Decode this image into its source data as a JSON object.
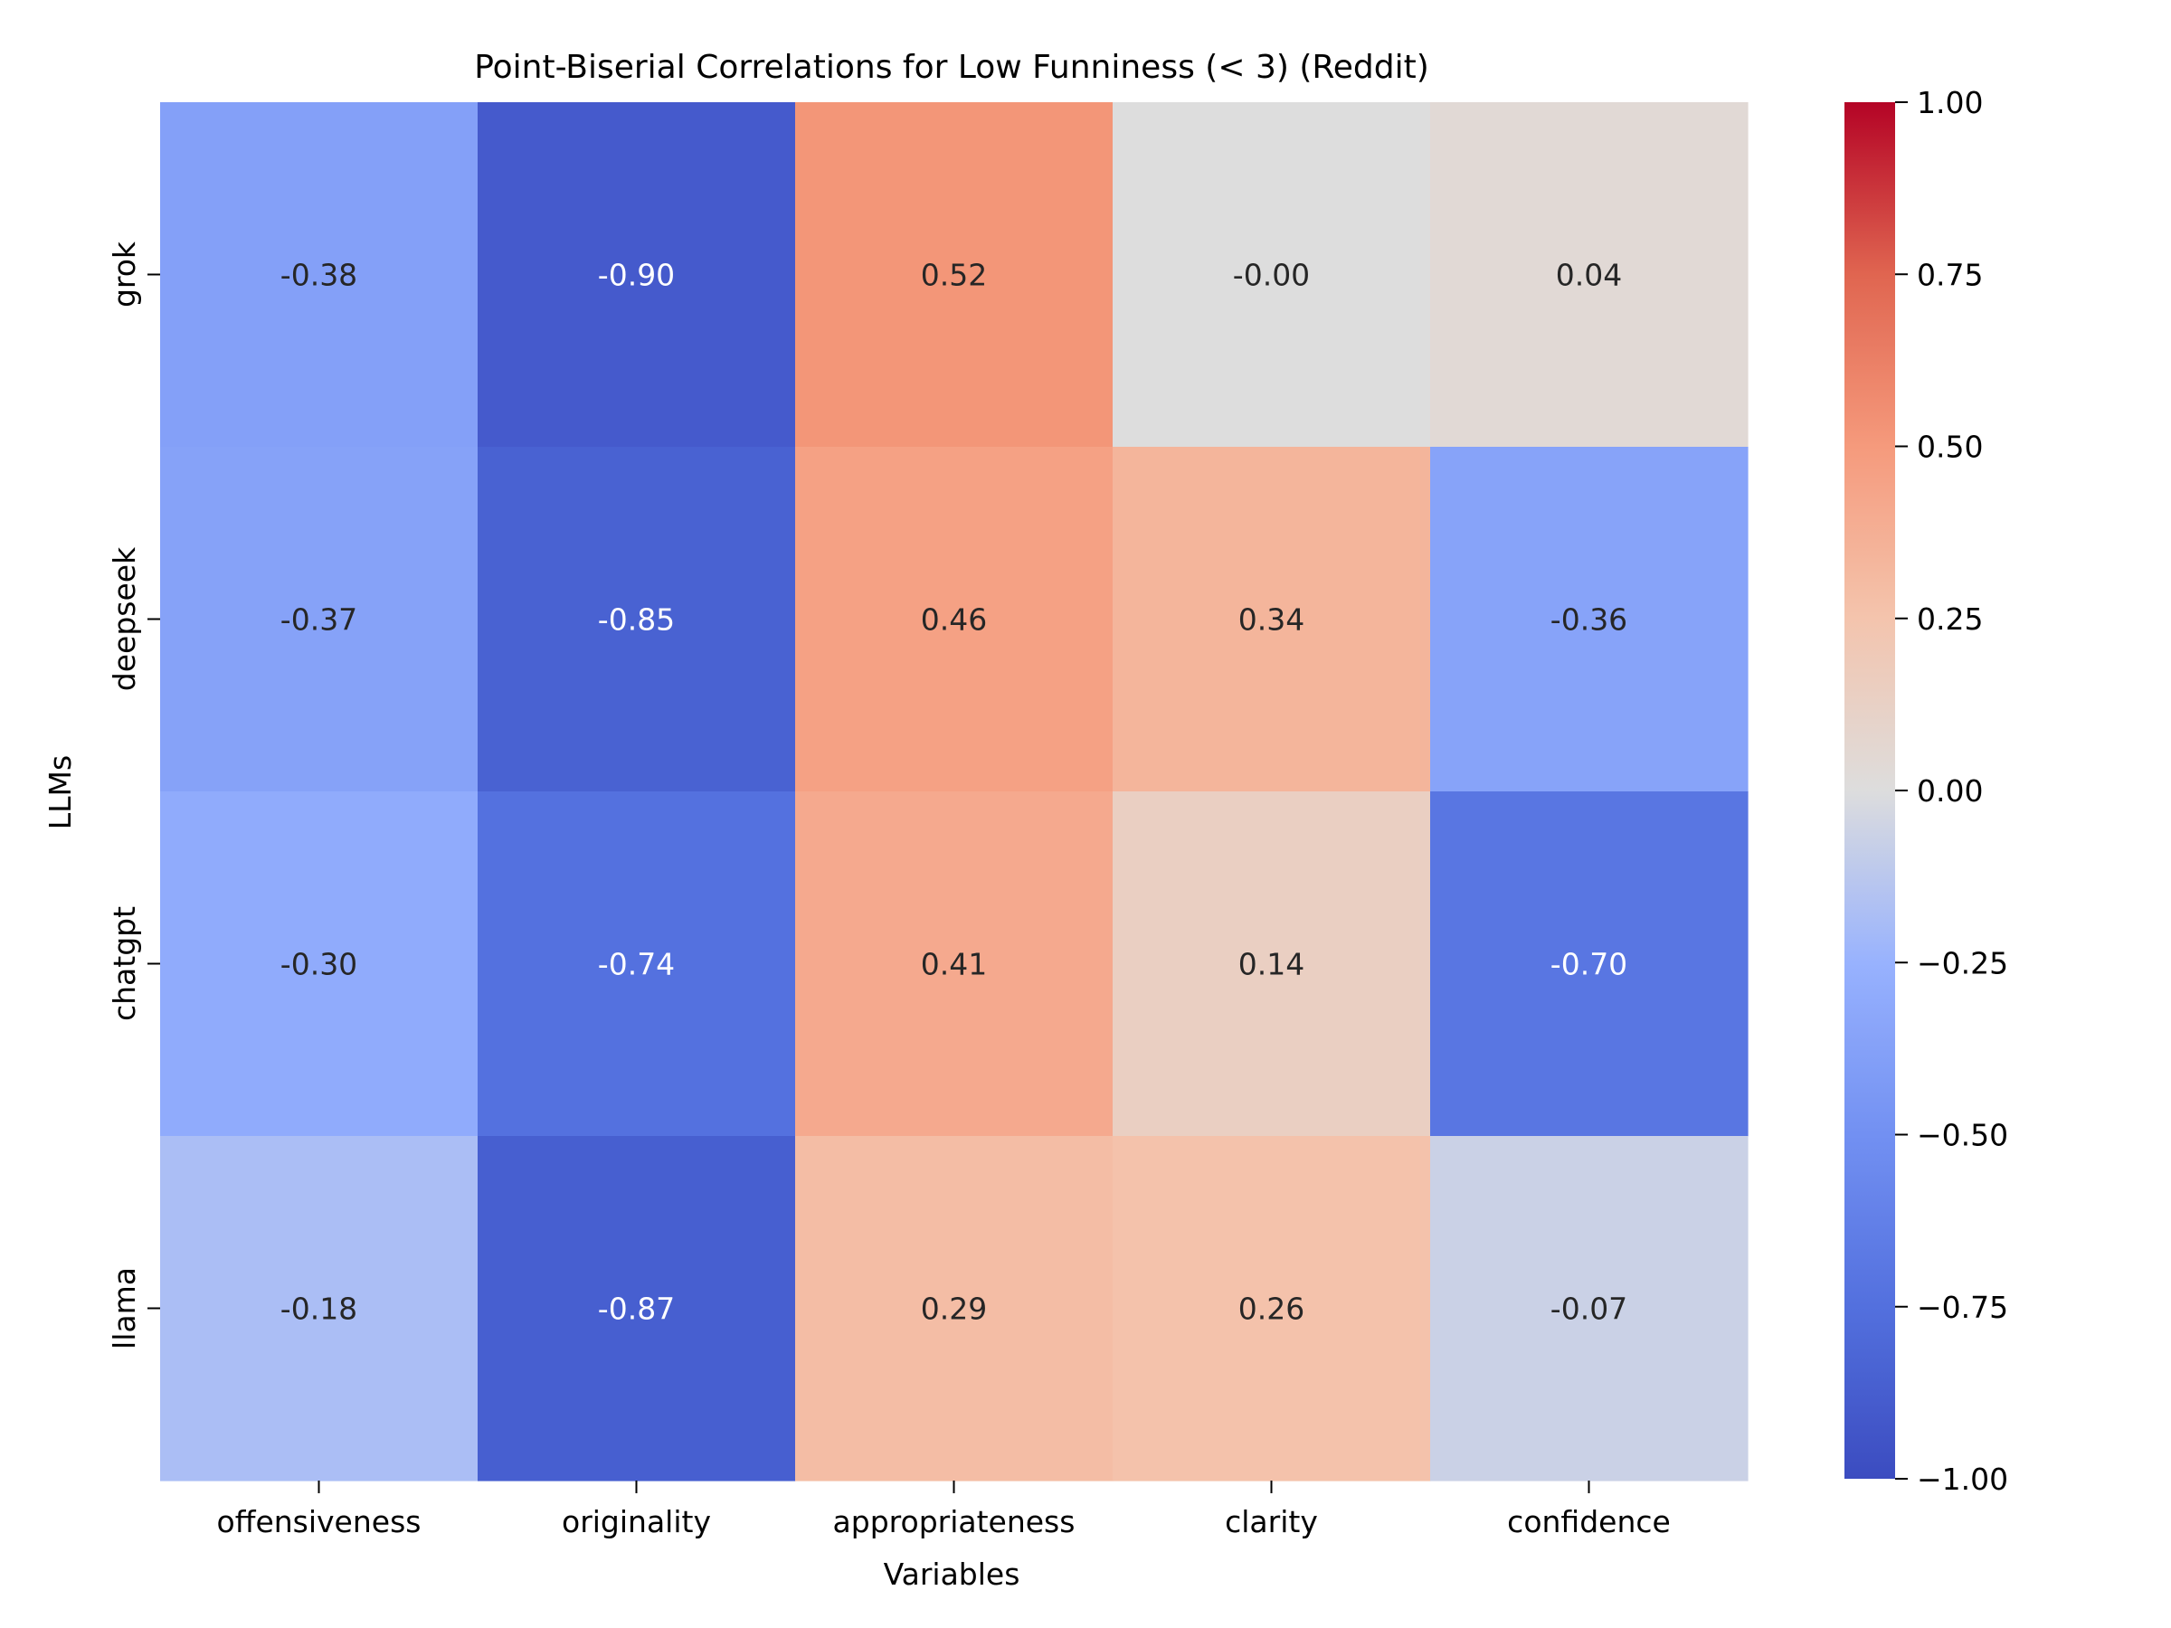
{
  "chart_data": {
    "type": "heatmap",
    "title": "Point-Biserial Correlations for Low Funniness (< 3) (Reddit)",
    "xlabel": "Variables",
    "ylabel": "LLMs",
    "columns": [
      "offensiveness",
      "originality",
      "appropriateness",
      "clarity",
      "confidence"
    ],
    "rows": [
      "grok",
      "deepseek",
      "chatgpt",
      "llama"
    ],
    "values": [
      [
        -0.38,
        -0.9,
        0.52,
        -0.0,
        0.04
      ],
      [
        -0.37,
        -0.85,
        0.46,
        0.34,
        -0.36
      ],
      [
        -0.3,
        -0.74,
        0.41,
        0.14,
        -0.7
      ],
      [
        -0.18,
        -0.87,
        0.29,
        0.26,
        -0.07
      ]
    ],
    "value_labels": [
      [
        "-0.38",
        "-0.90",
        "0.52",
        "-0.00",
        "0.04"
      ],
      [
        "-0.37",
        "-0.85",
        "0.46",
        "0.34",
        "-0.36"
      ],
      [
        "-0.30",
        "-0.74",
        "0.41",
        "0.14",
        "-0.70"
      ],
      [
        "-0.18",
        "-0.87",
        "0.29",
        "0.26",
        "-0.07"
      ]
    ],
    "colormap": "coolwarm",
    "vmin": -1.0,
    "vmax": 1.0,
    "colorbar_ticks": [
      1.0,
      0.75,
      0.5,
      0.25,
      0.0,
      -0.25,
      -0.5,
      -0.75,
      -1.0
    ],
    "colorbar_tick_labels": [
      "1.00",
      "0.75",
      "0.50",
      "0.25",
      "0.00",
      "−0.25",
      "−0.50",
      "−0.75",
      "−1.00"
    ],
    "grid": false,
    "legend": "colorbar-right"
  }
}
